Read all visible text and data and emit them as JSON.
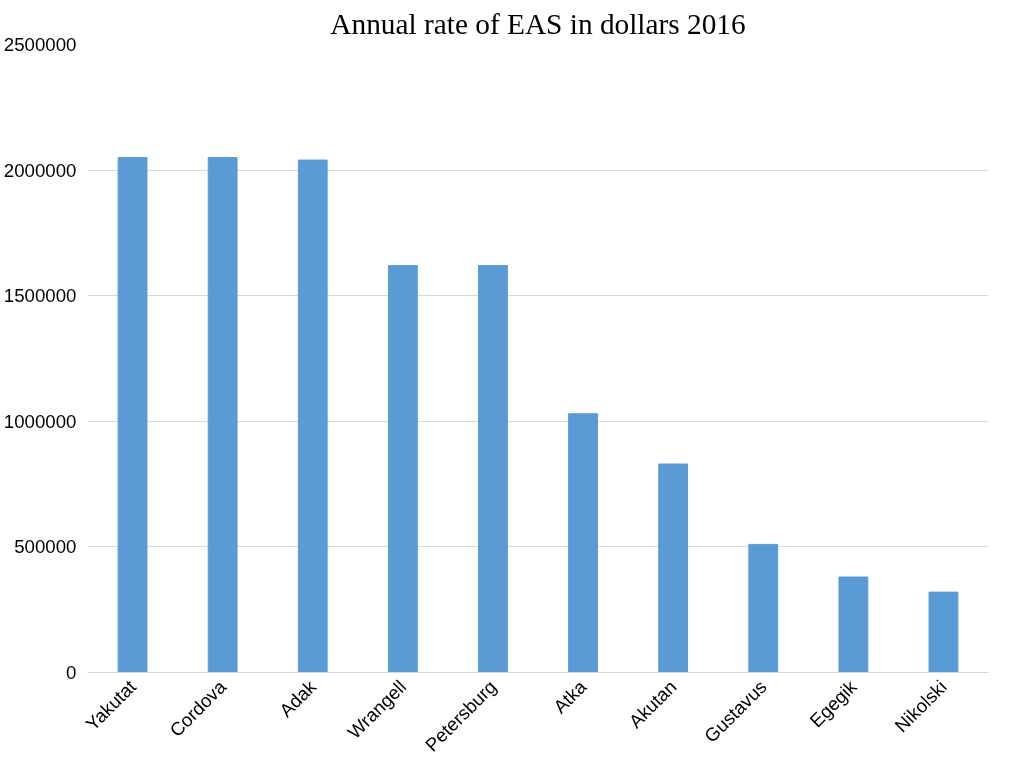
{
  "chart_data": {
    "type": "bar",
    "title": "Annual rate of EAS in dollars 2016",
    "categories": [
      "Yakutat",
      "Cordova",
      "Adak",
      "Wrangell",
      "Petersburg",
      "Atka",
      "Akutan",
      "Gustavus",
      "Egegik",
      "Nikolski"
    ],
    "values": [
      2050000,
      2050000,
      2040000,
      1620000,
      1620000,
      1030000,
      830000,
      510000,
      380000,
      320000
    ],
    "color": "#5b9bd5",
    "ylim": [
      0,
      2500000
    ],
    "yticks": [
      0,
      500000,
      1000000,
      1500000,
      2000000,
      2500000
    ],
    "grid": "y",
    "legend": false
  }
}
